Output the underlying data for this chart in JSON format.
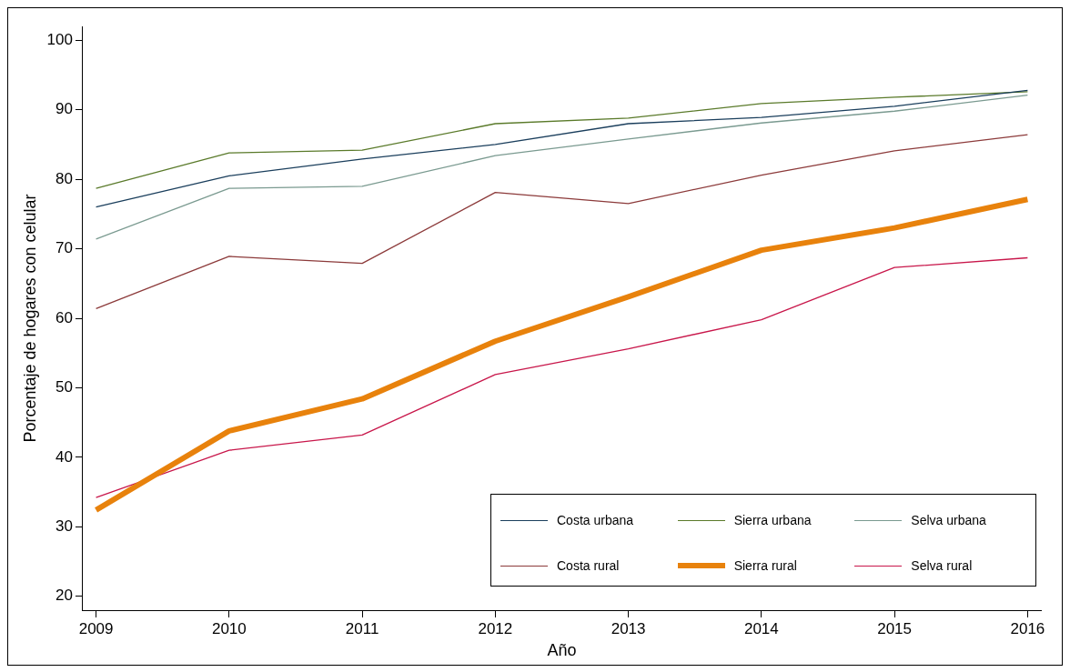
{
  "chart_data": {
    "type": "line",
    "xlabel": "Año",
    "ylabel": "Porcentaje de hogares con celular",
    "x": [
      2009,
      2010,
      2011,
      2012,
      2013,
      2014,
      2015,
      2016
    ],
    "xlim": [
      2008.9,
      2016.1
    ],
    "xticks": [
      2009,
      2010,
      2011,
      2012,
      2013,
      2014,
      2015,
      2016
    ],
    "ylim": [
      18,
      102
    ],
    "yticks": [
      20,
      30,
      40,
      50,
      60,
      70,
      80,
      90,
      100
    ],
    "grid": false,
    "legend": "bottom right",
    "marker": "none",
    "line_style": "solid",
    "series": [
      {
        "name": "Costa urbana",
        "color": "#1a3e5c",
        "values": [
          76,
          80.5,
          82.9,
          85,
          88,
          88.9,
          90.5,
          92.8
        ]
      },
      {
        "name": "Sierra urbana",
        "color": "#5a7a2a",
        "values": [
          78.7,
          83.8,
          84.2,
          88,
          88.8,
          90.9,
          91.8,
          92.6
        ]
      },
      {
        "name": "Selva urbana",
        "color": "#7a9a90",
        "values": [
          71.4,
          78.7,
          79,
          83.4,
          85.8,
          88.1,
          89.8,
          92.1
        ]
      },
      {
        "name": "Costa rural",
        "color": "#8c3a3a",
        "values": [
          61.4,
          68.9,
          67.9,
          78.1,
          76.5,
          80.6,
          84.1,
          86.4
        ]
      },
      {
        "name": "Sierra rural",
        "color": "#e8820c",
        "values": [
          32.4,
          43.8,
          48.4,
          56.7,
          63.1,
          69.8,
          73,
          77.1
        ]
      },
      {
        "name": "Selva rural",
        "color": "#c8164a",
        "values": [
          34.2,
          41,
          43.2,
          51.9,
          55.6,
          59.8,
          67.3,
          68.7
        ]
      }
    ]
  }
}
